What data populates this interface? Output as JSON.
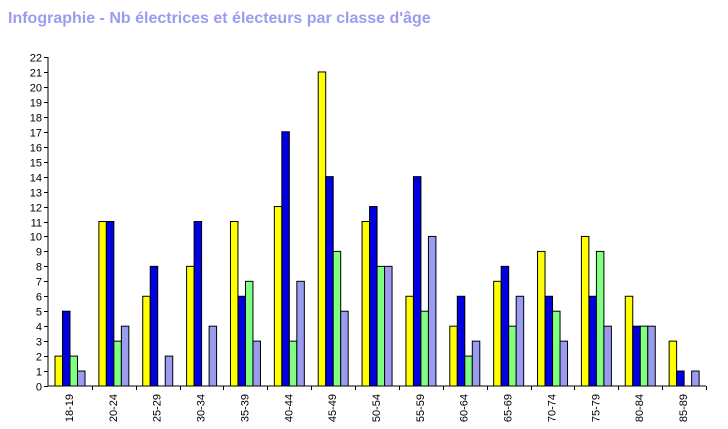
{
  "chart_data": {
    "type": "bar",
    "title": "Infographie - Nb électrices et électeurs par classe d'âge",
    "xlabel": "",
    "ylabel": "",
    "ylim": [
      0,
      22
    ],
    "yticks": [
      0,
      1,
      2,
      3,
      4,
      5,
      6,
      7,
      8,
      9,
      10,
      11,
      12,
      13,
      14,
      15,
      16,
      17,
      18,
      19,
      20,
      21,
      22
    ],
    "grid": false,
    "legend": "none",
    "categories": [
      "18-19",
      "20-24",
      "25-29",
      "30-34",
      "35-39",
      "40-44",
      "45-49",
      "50-54",
      "55-59",
      "60-64",
      "65-69",
      "70-74",
      "75-79",
      "80-84",
      "85-89"
    ],
    "series": [
      {
        "color": "#ffff00",
        "values": [
          2,
          11,
          6,
          8,
          11,
          12,
          21,
          11,
          6,
          4,
          7,
          9,
          10,
          6,
          3
        ]
      },
      {
        "color": "#0000e0",
        "values": [
          5,
          11,
          8,
          11,
          6,
          17,
          14,
          12,
          14,
          6,
          8,
          6,
          6,
          4,
          1
        ]
      },
      {
        "color": "#80ff80",
        "values": [
          2,
          3,
          0,
          0,
          7,
          3,
          9,
          8,
          5,
          2,
          4,
          5,
          9,
          4,
          0
        ]
      },
      {
        "color": "#9b9bef",
        "values": [
          1,
          4,
          2,
          4,
          3,
          7,
          5,
          8,
          10,
          3,
          6,
          3,
          4,
          4,
          1
        ]
      }
    ]
  }
}
